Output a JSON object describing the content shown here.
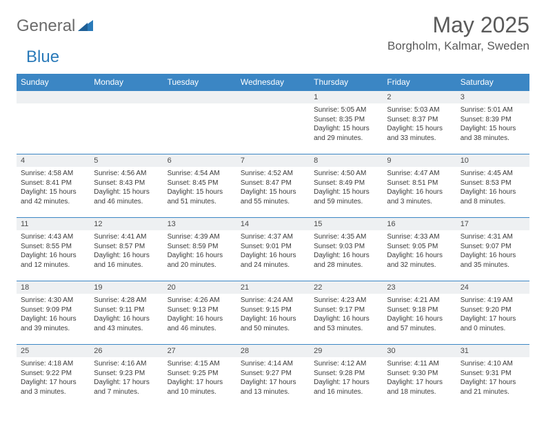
{
  "brand": {
    "general": "General",
    "blue": "Blue"
  },
  "title": "May 2025",
  "location": "Borgholm, Kalmar, Sweden",
  "colors": {
    "header_bg": "#3b86c4",
    "header_text": "#ffffff",
    "daynum_bg": "#eef0f2",
    "border": "#3b86c4",
    "brand_gray": "#6b6b6b",
    "brand_blue": "#2a7ab9"
  },
  "weekdays": [
    "Sunday",
    "Monday",
    "Tuesday",
    "Wednesday",
    "Thursday",
    "Friday",
    "Saturday"
  ],
  "weeks": [
    [
      {
        "day": "",
        "sunrise": "",
        "sunset": "",
        "daylight": ""
      },
      {
        "day": "",
        "sunrise": "",
        "sunset": "",
        "daylight": ""
      },
      {
        "day": "",
        "sunrise": "",
        "sunset": "",
        "daylight": ""
      },
      {
        "day": "",
        "sunrise": "",
        "sunset": "",
        "daylight": ""
      },
      {
        "day": "1",
        "sunrise": "Sunrise: 5:05 AM",
        "sunset": "Sunset: 8:35 PM",
        "daylight": "Daylight: 15 hours and 29 minutes."
      },
      {
        "day": "2",
        "sunrise": "Sunrise: 5:03 AM",
        "sunset": "Sunset: 8:37 PM",
        "daylight": "Daylight: 15 hours and 33 minutes."
      },
      {
        "day": "3",
        "sunrise": "Sunrise: 5:01 AM",
        "sunset": "Sunset: 8:39 PM",
        "daylight": "Daylight: 15 hours and 38 minutes."
      }
    ],
    [
      {
        "day": "4",
        "sunrise": "Sunrise: 4:58 AM",
        "sunset": "Sunset: 8:41 PM",
        "daylight": "Daylight: 15 hours and 42 minutes."
      },
      {
        "day": "5",
        "sunrise": "Sunrise: 4:56 AM",
        "sunset": "Sunset: 8:43 PM",
        "daylight": "Daylight: 15 hours and 46 minutes."
      },
      {
        "day": "6",
        "sunrise": "Sunrise: 4:54 AM",
        "sunset": "Sunset: 8:45 PM",
        "daylight": "Daylight: 15 hours and 51 minutes."
      },
      {
        "day": "7",
        "sunrise": "Sunrise: 4:52 AM",
        "sunset": "Sunset: 8:47 PM",
        "daylight": "Daylight: 15 hours and 55 minutes."
      },
      {
        "day": "8",
        "sunrise": "Sunrise: 4:50 AM",
        "sunset": "Sunset: 8:49 PM",
        "daylight": "Daylight: 15 hours and 59 minutes."
      },
      {
        "day": "9",
        "sunrise": "Sunrise: 4:47 AM",
        "sunset": "Sunset: 8:51 PM",
        "daylight": "Daylight: 16 hours and 3 minutes."
      },
      {
        "day": "10",
        "sunrise": "Sunrise: 4:45 AM",
        "sunset": "Sunset: 8:53 PM",
        "daylight": "Daylight: 16 hours and 8 minutes."
      }
    ],
    [
      {
        "day": "11",
        "sunrise": "Sunrise: 4:43 AM",
        "sunset": "Sunset: 8:55 PM",
        "daylight": "Daylight: 16 hours and 12 minutes."
      },
      {
        "day": "12",
        "sunrise": "Sunrise: 4:41 AM",
        "sunset": "Sunset: 8:57 PM",
        "daylight": "Daylight: 16 hours and 16 minutes."
      },
      {
        "day": "13",
        "sunrise": "Sunrise: 4:39 AM",
        "sunset": "Sunset: 8:59 PM",
        "daylight": "Daylight: 16 hours and 20 minutes."
      },
      {
        "day": "14",
        "sunrise": "Sunrise: 4:37 AM",
        "sunset": "Sunset: 9:01 PM",
        "daylight": "Daylight: 16 hours and 24 minutes."
      },
      {
        "day": "15",
        "sunrise": "Sunrise: 4:35 AM",
        "sunset": "Sunset: 9:03 PM",
        "daylight": "Daylight: 16 hours and 28 minutes."
      },
      {
        "day": "16",
        "sunrise": "Sunrise: 4:33 AM",
        "sunset": "Sunset: 9:05 PM",
        "daylight": "Daylight: 16 hours and 32 minutes."
      },
      {
        "day": "17",
        "sunrise": "Sunrise: 4:31 AM",
        "sunset": "Sunset: 9:07 PM",
        "daylight": "Daylight: 16 hours and 35 minutes."
      }
    ],
    [
      {
        "day": "18",
        "sunrise": "Sunrise: 4:30 AM",
        "sunset": "Sunset: 9:09 PM",
        "daylight": "Daylight: 16 hours and 39 minutes."
      },
      {
        "day": "19",
        "sunrise": "Sunrise: 4:28 AM",
        "sunset": "Sunset: 9:11 PM",
        "daylight": "Daylight: 16 hours and 43 minutes."
      },
      {
        "day": "20",
        "sunrise": "Sunrise: 4:26 AM",
        "sunset": "Sunset: 9:13 PM",
        "daylight": "Daylight: 16 hours and 46 minutes."
      },
      {
        "day": "21",
        "sunrise": "Sunrise: 4:24 AM",
        "sunset": "Sunset: 9:15 PM",
        "daylight": "Daylight: 16 hours and 50 minutes."
      },
      {
        "day": "22",
        "sunrise": "Sunrise: 4:23 AM",
        "sunset": "Sunset: 9:17 PM",
        "daylight": "Daylight: 16 hours and 53 minutes."
      },
      {
        "day": "23",
        "sunrise": "Sunrise: 4:21 AM",
        "sunset": "Sunset: 9:18 PM",
        "daylight": "Daylight: 16 hours and 57 minutes."
      },
      {
        "day": "24",
        "sunrise": "Sunrise: 4:19 AM",
        "sunset": "Sunset: 9:20 PM",
        "daylight": "Daylight: 17 hours and 0 minutes."
      }
    ],
    [
      {
        "day": "25",
        "sunrise": "Sunrise: 4:18 AM",
        "sunset": "Sunset: 9:22 PM",
        "daylight": "Daylight: 17 hours and 3 minutes."
      },
      {
        "day": "26",
        "sunrise": "Sunrise: 4:16 AM",
        "sunset": "Sunset: 9:23 PM",
        "daylight": "Daylight: 17 hours and 7 minutes."
      },
      {
        "day": "27",
        "sunrise": "Sunrise: 4:15 AM",
        "sunset": "Sunset: 9:25 PM",
        "daylight": "Daylight: 17 hours and 10 minutes."
      },
      {
        "day": "28",
        "sunrise": "Sunrise: 4:14 AM",
        "sunset": "Sunset: 9:27 PM",
        "daylight": "Daylight: 17 hours and 13 minutes."
      },
      {
        "day": "29",
        "sunrise": "Sunrise: 4:12 AM",
        "sunset": "Sunset: 9:28 PM",
        "daylight": "Daylight: 17 hours and 16 minutes."
      },
      {
        "day": "30",
        "sunrise": "Sunrise: 4:11 AM",
        "sunset": "Sunset: 9:30 PM",
        "daylight": "Daylight: 17 hours and 18 minutes."
      },
      {
        "day": "31",
        "sunrise": "Sunrise: 4:10 AM",
        "sunset": "Sunset: 9:31 PM",
        "daylight": "Daylight: 17 hours and 21 minutes."
      }
    ]
  ]
}
